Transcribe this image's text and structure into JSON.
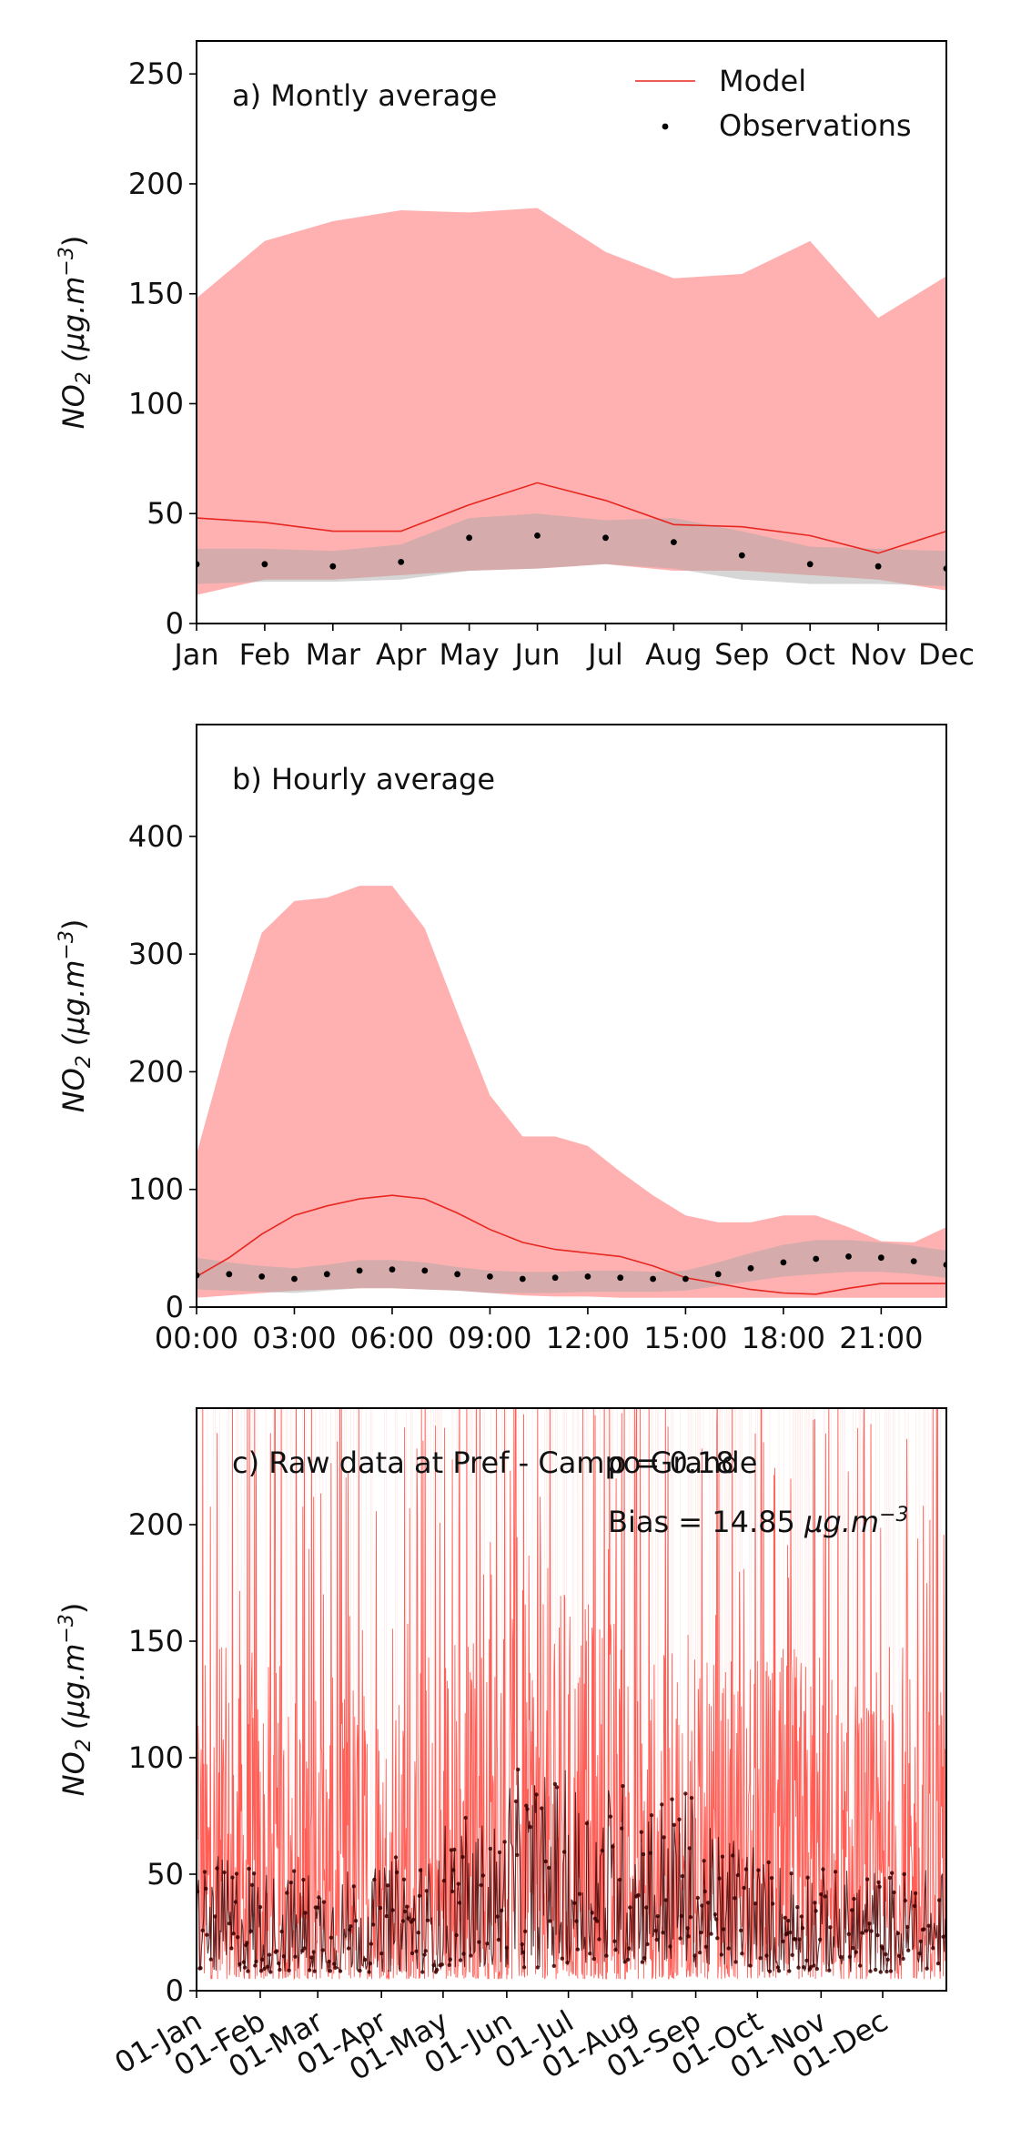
{
  "chart_data": [
    {
      "type": "line",
      "title": "a) Montly average",
      "ylabel": "NO2 (µg.m−3)",
      "ylabel_base": "NO",
      "ylabel_sub": "2",
      "ylabel_unit": "(µg.m",
      "ylabel_sup": "−3",
      "ylabel_close": ")",
      "xlabel": "",
      "x": [
        1,
        2,
        3,
        4,
        5,
        6,
        7,
        8,
        9,
        10,
        11,
        12
      ],
      "categories": [
        "Jan",
        "Feb",
        "Mar",
        "Apr",
        "May",
        "Jun",
        "Jul",
        "Aug",
        "Sep",
        "Oct",
        "Nov",
        "Dec"
      ],
      "xlim": [
        1,
        12
      ],
      "ylim": [
        0,
        265
      ],
      "yticks": [
        0,
        50,
        100,
        150,
        200,
        250
      ],
      "legend": {
        "placement": "top-right",
        "entries": [
          "Model",
          "Observations"
        ]
      },
      "series": [
        {
          "name": "Model",
          "values": [
            48,
            46,
            42,
            42,
            54,
            64,
            56,
            45,
            44,
            40,
            32,
            42
          ],
          "band_upper": [
            148,
            174,
            183,
            188,
            187,
            189,
            169,
            157,
            159,
            174,
            139,
            158
          ],
          "band_lower": [
            13,
            20,
            20,
            22,
            24,
            25,
            27,
            24,
            24,
            22,
            20,
            15
          ]
        },
        {
          "name": "Observations",
          "values": [
            27,
            27,
            26,
            28,
            39,
            40,
            39,
            37,
            31,
            27,
            26,
            25
          ],
          "band_upper": [
            34,
            34,
            33,
            36,
            48,
            50,
            47,
            48,
            42,
            35,
            34,
            33
          ],
          "band_lower": [
            18,
            19,
            19,
            20,
            24,
            25,
            27,
            25,
            20,
            18,
            18,
            17
          ]
        }
      ]
    },
    {
      "type": "line",
      "title": "b) Hourly average",
      "ylabel": "NO2 (µg.m−3)",
      "ylabel_base": "NO",
      "ylabel_sub": "2",
      "ylabel_unit": "(µg.m",
      "ylabel_sup": "−3",
      "ylabel_close": ")",
      "xlabel": "",
      "x": [
        0,
        1,
        2,
        3,
        4,
        5,
        6,
        7,
        8,
        9,
        10,
        11,
        12,
        13,
        14,
        15,
        16,
        17,
        18,
        19,
        20,
        21,
        22,
        23
      ],
      "xticks": [
        0,
        3,
        6,
        9,
        12,
        15,
        18,
        21
      ],
      "xtick_labels": [
        "00:00",
        "03:00",
        "06:00",
        "09:00",
        "12:00",
        "15:00",
        "18:00",
        "21:00"
      ],
      "xlim": [
        0,
        23
      ],
      "ylim": [
        0,
        495
      ],
      "yticks": [
        0,
        100,
        200,
        300,
        400
      ],
      "series": [
        {
          "name": "Model",
          "values": [
            26,
            42,
            62,
            78,
            86,
            92,
            95,
            92,
            80,
            66,
            55,
            49,
            46,
            43,
            35,
            25,
            20,
            15,
            12,
            11,
            16,
            20,
            20,
            20
          ],
          "band_upper": [
            130,
            230,
            318,
            345,
            348,
            358,
            358,
            322,
            250,
            180,
            145,
            145,
            137,
            115,
            95,
            78,
            72,
            72,
            78,
            78,
            68,
            56,
            55,
            68
          ],
          "band_lower": [
            8,
            10,
            12,
            14,
            15,
            16,
            16,
            15,
            14,
            12,
            10,
            9,
            9,
            8,
            8,
            8,
            8,
            8,
            8,
            8,
            8,
            8,
            8,
            8
          ]
        },
        {
          "name": "Observations",
          "values": [
            27,
            28,
            26,
            24,
            28,
            31,
            32,
            31,
            28,
            26,
            24,
            25,
            26,
            25,
            24,
            24,
            28,
            33,
            38,
            41,
            43,
            42,
            39,
            36
          ],
          "band_upper": [
            42,
            38,
            35,
            33,
            36,
            40,
            40,
            38,
            34,
            31,
            30,
            30,
            31,
            31,
            30,
            31,
            38,
            46,
            53,
            57,
            57,
            55,
            52,
            48
          ],
          "band_lower": [
            15,
            14,
            13,
            12,
            14,
            16,
            16,
            15,
            14,
            12,
            12,
            12,
            13,
            13,
            13,
            14,
            18,
            22,
            26,
            28,
            30,
            30,
            28,
            25
          ]
        }
      ]
    },
    {
      "type": "line",
      "title": "c) Raw data at Pref - Campo Grande",
      "ylabel": "NO2 (µg.m−3)",
      "ylabel_base": "NO",
      "ylabel_sub": "2",
      "ylabel_unit": "(µg.m",
      "ylabel_sup": "−3",
      "ylabel_close": ")",
      "xlabel": "",
      "annotations": {
        "rho": "ρ = 0.18",
        "bias_text": "Bias = 14.85 ",
        "bias_unit": "µg.m",
        "bias_sup": "−3"
      },
      "xtick_labels": [
        "01-Jan",
        "01-Feb",
        "01-Mar",
        "01-Apr",
        "01-May",
        "01-Jun",
        "01-Jul",
        "01-Aug",
        "01-Sep",
        "01-Oct",
        "01-Nov",
        "01-Dec"
      ],
      "xticks_day_of_year": [
        1,
        32,
        60,
        91,
        121,
        152,
        182,
        213,
        244,
        274,
        305,
        335
      ],
      "xlim_day_of_year": [
        1,
        366
      ],
      "ylim": [
        0,
        250
      ],
      "yticks": [
        0,
        50,
        100,
        150,
        200
      ],
      "series": [
        {
          "name": "Model",
          "monthly_typical_peak": [
            110,
            105,
            100,
            95,
            120,
            140,
            125,
            110,
            105,
            110,
            95,
            100
          ],
          "monthly_typical_low": [
            5,
            5,
            5,
            5,
            5,
            5,
            5,
            5,
            5,
            5,
            5,
            5
          ]
        },
        {
          "name": "Observations",
          "monthly_typical_peak": [
            50,
            45,
            45,
            50,
            65,
            85,
            80,
            75,
            60,
            50,
            45,
            45
          ],
          "monthly_typical_low": [
            8,
            8,
            8,
            8,
            10,
            10,
            12,
            12,
            10,
            8,
            8,
            8
          ]
        }
      ]
    }
  ],
  "colors": {
    "model_line": "#e8261f",
    "model_band": "#ffb1b1",
    "obs_band": "#a5a5a5",
    "obs_point": "#000000",
    "raw_model": "#ff2a1f",
    "raw_obs": "#3a0000"
  }
}
